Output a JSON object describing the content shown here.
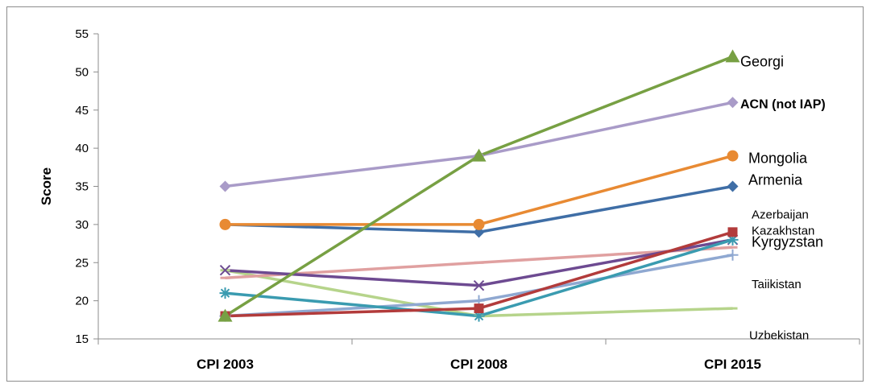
{
  "chart_data": {
    "type": "line",
    "title": "",
    "xlabel": "",
    "ylabel": "Score",
    "categories": [
      "CPI 2003",
      "CPI 2008",
      "CPI 2015"
    ],
    "ylim": [
      15,
      55
    ],
    "yticks": [
      15,
      20,
      25,
      30,
      35,
      40,
      45,
      50,
      55
    ],
    "grid": false,
    "legend": "none (series labeled at right end)",
    "series": [
      {
        "name": "Georgi",
        "values": [
          18,
          39,
          52
        ],
        "color": "#77a043",
        "marker": "triangle",
        "label_style": "large"
      },
      {
        "name": "ACN (not IAP)",
        "values": [
          35,
          39,
          46
        ],
        "color": "#a99bc8",
        "marker": "diamond",
        "label_style": "bold"
      },
      {
        "name": "Mongolia",
        "values": [
          30,
          30,
          39
        ],
        "color": "#e88a33",
        "marker": "circle",
        "label_style": "large"
      },
      {
        "name": "Armenia",
        "values": [
          30,
          29,
          35
        ],
        "color": "#3f6ea6",
        "marker": "diamond",
        "label_style": "large"
      },
      {
        "name": "Azerbaijan",
        "values": [
          18,
          19,
          29
        ],
        "color": "#b23b3b",
        "marker": "square",
        "label_style": "normal"
      },
      {
        "name": "Kazakhstan",
        "values": [
          21,
          18,
          28
        ],
        "color": "#3a9bb0",
        "marker": "star",
        "label_style": "normal"
      },
      {
        "name": "Kyrgyzstan",
        "values": [
          24,
          22,
          28
        ],
        "color": "#6d4a91",
        "marker": "x",
        "label_style": "large"
      },
      {
        "name": "Taiikistan",
        "values": [
          18,
          20,
          26
        ],
        "color": "#8fa8d1",
        "marker": "plus",
        "label_style": "normal"
      },
      {
        "name": "",
        "values": [
          23,
          25,
          27
        ],
        "color": "#e0a0a0",
        "marker": "dash",
        "label_style": "normal"
      },
      {
        "name": "Uzbekistan",
        "values": [
          24,
          18,
          19
        ],
        "color": "#b6d48b",
        "marker": "dash",
        "label_style": "normal"
      }
    ]
  }
}
